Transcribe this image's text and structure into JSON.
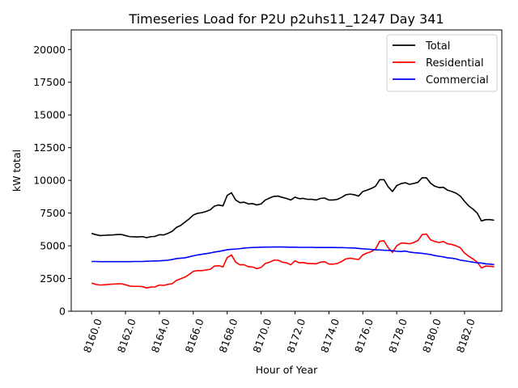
{
  "chart_data": {
    "type": "line",
    "title": "Timeseries Load for P2U p2uhs11_1247  Day 341",
    "xlabel": "Hour of Year",
    "ylabel": "kW total",
    "xlim": [
      8158.8,
      8184.2
    ],
    "ylim": [
      0,
      21500
    ],
    "xticks": [
      8160,
      8162,
      8164,
      8166,
      8168,
      8170,
      8172,
      8174,
      8176,
      8178,
      8180,
      8182
    ],
    "xtick_labels": [
      "8160.0",
      "8162.0",
      "8164.0",
      "8166.0",
      "8168.0",
      "8170.0",
      "8172.0",
      "8174.0",
      "8176.0",
      "8178.0",
      "8180.0",
      "8182.0"
    ],
    "yticks": [
      0,
      2500,
      5000,
      7500,
      10000,
      12500,
      15000,
      17500,
      20000
    ],
    "ytick_labels": [
      "0",
      "2500",
      "5000",
      "7500",
      "10000",
      "12500",
      "15000",
      "17500",
      "20000"
    ],
    "legend_position": "top-right",
    "x": [
      8160.0,
      8160.25,
      8160.5,
      8160.75,
      8161.0,
      8161.25,
      8161.5,
      8161.75,
      8162.0,
      8162.25,
      8162.5,
      8162.75,
      8163.0,
      8163.25,
      8163.5,
      8163.75,
      8164.0,
      8164.25,
      8164.5,
      8164.75,
      8165.0,
      8165.25,
      8165.5,
      8165.75,
      8166.0,
      8166.25,
      8166.5,
      8166.75,
      8167.0,
      8167.25,
      8167.5,
      8167.75,
      8168.0,
      8168.25,
      8168.5,
      8168.75,
      8169.0,
      8169.25,
      8169.5,
      8169.75,
      8170.0,
      8170.25,
      8170.5,
      8170.75,
      8171.0,
      8171.25,
      8171.5,
      8171.75,
      8172.0,
      8172.25,
      8172.5,
      8172.75,
      8173.0,
      8173.25,
      8173.5,
      8173.75,
      8174.0,
      8174.25,
      8174.5,
      8174.75,
      8175.0,
      8175.25,
      8175.5,
      8175.75,
      8176.0,
      8176.25,
      8176.5,
      8176.75,
      8177.0,
      8177.25,
      8177.5,
      8177.75,
      8178.0,
      8178.25,
      8178.5,
      8178.75,
      8179.0,
      8179.25,
      8179.5,
      8179.75,
      8180.0,
      8180.25,
      8180.5,
      8180.75,
      8181.0,
      8181.25,
      8181.5,
      8181.75,
      8182.0,
      8182.25,
      8182.5,
      8182.75,
      8183.0,
      8183.25,
      8183.5,
      8183.75
    ],
    "series": [
      {
        "name": "Total",
        "color": "#000000",
        "values": [
          5950,
          5850,
          5780,
          5800,
          5820,
          5830,
          5860,
          5870,
          5780,
          5700,
          5690,
          5680,
          5700,
          5620,
          5700,
          5720,
          5850,
          5830,
          5950,
          6100,
          6400,
          6550,
          6800,
          7050,
          7350,
          7480,
          7530,
          7620,
          7750,
          8030,
          8120,
          8050,
          8850,
          9050,
          8500,
          8300,
          8330,
          8200,
          8220,
          8120,
          8200,
          8500,
          8650,
          8780,
          8800,
          8700,
          8620,
          8500,
          8720,
          8600,
          8620,
          8550,
          8550,
          8500,
          8620,
          8650,
          8500,
          8500,
          8550,
          8700,
          8900,
          8950,
          8900,
          8800,
          9150,
          9250,
          9380,
          9550,
          10050,
          10050,
          9500,
          9150,
          9600,
          9750,
          9820,
          9700,
          9760,
          9850,
          10200,
          10200,
          9780,
          9550,
          9450,
          9470,
          9250,
          9150,
          9020,
          8800,
          8400,
          8050,
          7800,
          7500,
          6900,
          7000,
          7000,
          6950
        ]
      },
      {
        "name": "Residential",
        "color": "#ff0000",
        "values": [
          2150,
          2050,
          2000,
          2020,
          2050,
          2070,
          2090,
          2100,
          2020,
          1920,
          1900,
          1900,
          1880,
          1780,
          1850,
          1860,
          2000,
          1970,
          2050,
          2100,
          2350,
          2480,
          2600,
          2800,
          3050,
          3100,
          3100,
          3150,
          3200,
          3450,
          3480,
          3380,
          4100,
          4300,
          3750,
          3550,
          3550,
          3400,
          3380,
          3250,
          3350,
          3650,
          3750,
          3900,
          3900,
          3750,
          3700,
          3550,
          3850,
          3700,
          3720,
          3640,
          3640,
          3620,
          3750,
          3780,
          3600,
          3600,
          3650,
          3800,
          4000,
          4050,
          4000,
          3950,
          4300,
          4450,
          4550,
          4750,
          5350,
          5380,
          4850,
          4500,
          5000,
          5200,
          5200,
          5150,
          5250,
          5400,
          5850,
          5900,
          5450,
          5330,
          5250,
          5330,
          5150,
          5100,
          5000,
          4850,
          4450,
          4200,
          4000,
          3750,
          3300,
          3450,
          3430,
          3400
        ]
      },
      {
        "name": "Commercial",
        "color": "#0000ff",
        "values": [
          3800,
          3800,
          3790,
          3790,
          3790,
          3790,
          3790,
          3790,
          3790,
          3790,
          3800,
          3800,
          3800,
          3820,
          3830,
          3840,
          3850,
          3870,
          3900,
          3950,
          4020,
          4050,
          4080,
          4150,
          4230,
          4300,
          4350,
          4400,
          4450,
          4520,
          4570,
          4630,
          4700,
          4730,
          4750,
          4780,
          4820,
          4850,
          4870,
          4880,
          4890,
          4900,
          4900,
          4910,
          4910,
          4910,
          4900,
          4890,
          4890,
          4880,
          4880,
          4880,
          4880,
          4870,
          4870,
          4870,
          4870,
          4870,
          4860,
          4860,
          4850,
          4840,
          4830,
          4800,
          4770,
          4750,
          4720,
          4700,
          4680,
          4660,
          4650,
          4620,
          4580,
          4560,
          4600,
          4520,
          4480,
          4450,
          4420,
          4380,
          4330,
          4250,
          4200,
          4150,
          4080,
          4050,
          4000,
          3900,
          3860,
          3800,
          3750,
          3700,
          3680,
          3620,
          3600,
          3560
        ]
      }
    ]
  }
}
